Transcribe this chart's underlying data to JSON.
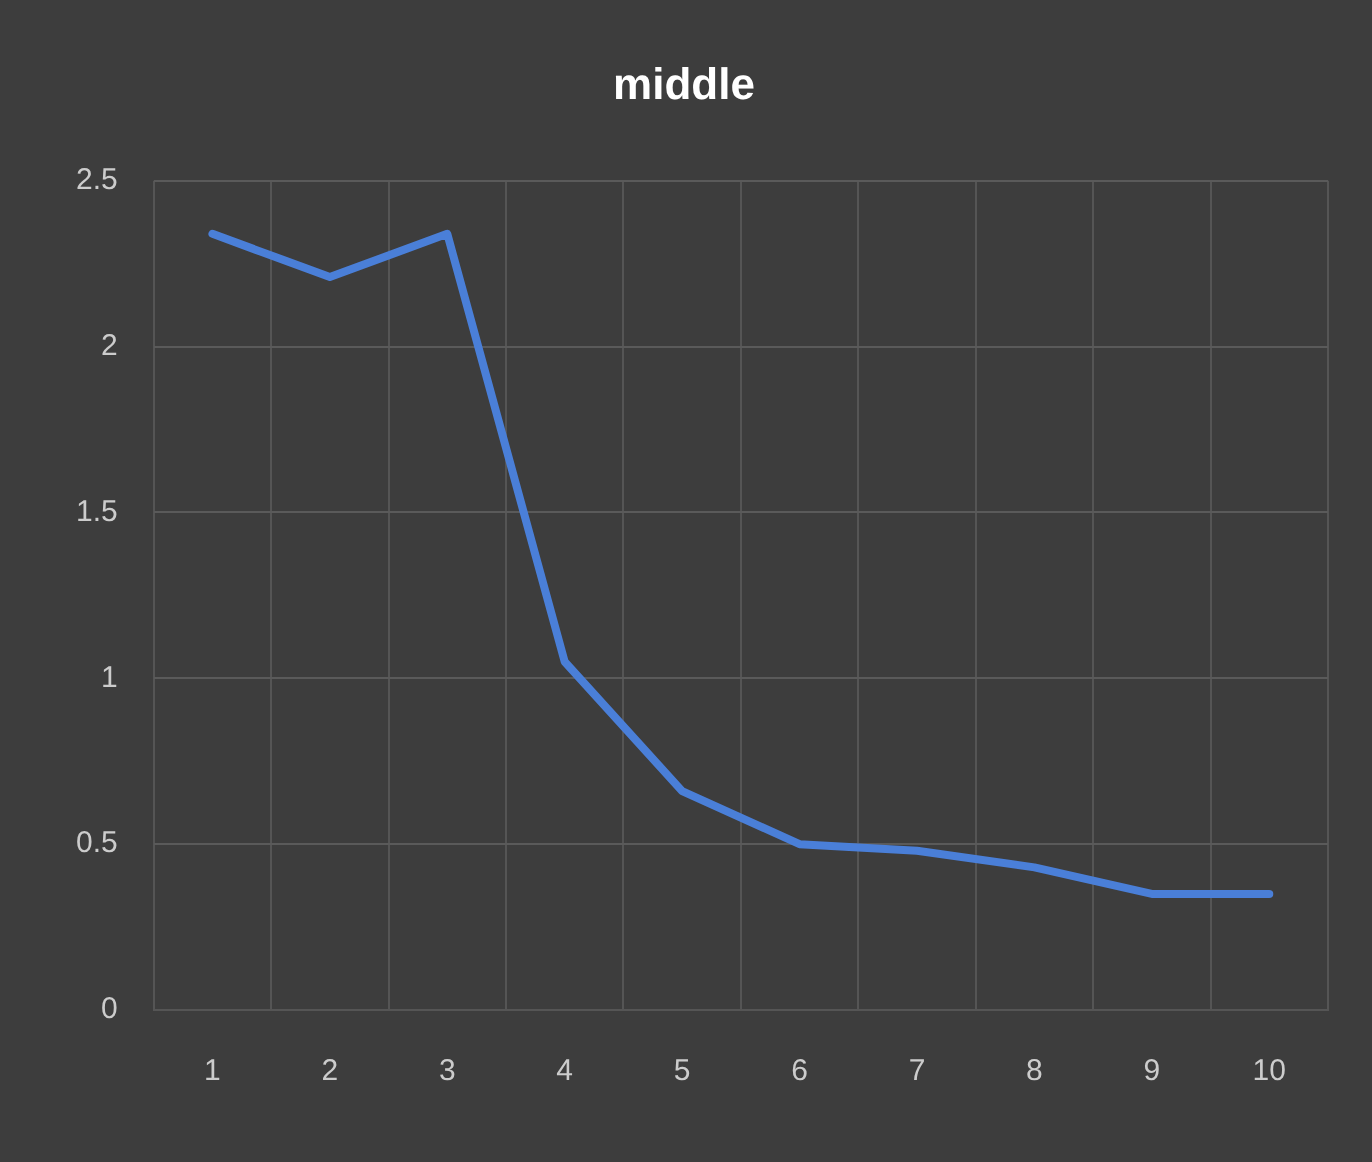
{
  "chart_data": {
    "type": "line",
    "title": "middle",
    "categories": [
      "1",
      "2",
      "3",
      "4",
      "5",
      "6",
      "7",
      "8",
      "9",
      "10"
    ],
    "values": [
      2.34,
      2.21,
      2.34,
      1.05,
      0.66,
      0.5,
      0.48,
      0.43,
      0.35,
      0.35
    ],
    "color": "#4a7fd8",
    "ylim": [
      0,
      2.5
    ],
    "yticks": [
      0,
      0.5,
      1,
      1.5,
      2,
      2.5
    ],
    "grid": true,
    "legend": false,
    "marker": "none",
    "line_style": "solid"
  }
}
